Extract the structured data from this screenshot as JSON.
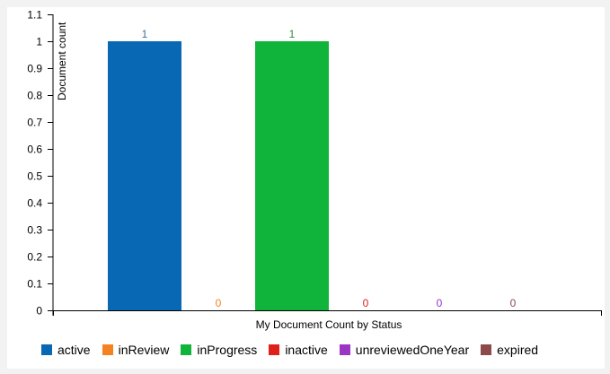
{
  "chart_data": {
    "type": "bar",
    "title": "",
    "xlabel": "My Document Count by Status",
    "ylabel": "Document count",
    "ylim": [
      0,
      1.1
    ],
    "yticks": [
      "0",
      "0.1",
      "0.2",
      "0.3",
      "0.4",
      "0.5",
      "0.6",
      "0.7",
      "0.8",
      "0.9",
      "1",
      "1.1"
    ],
    "categories": [
      "active",
      "inReview",
      "inProgress",
      "inactive",
      "unreviewedOneYear",
      "expired"
    ],
    "values": [
      1,
      0,
      1,
      0,
      0,
      0
    ],
    "data_labels": [
      "1",
      "0",
      "1",
      "0",
      "0",
      "0"
    ],
    "colors": [
      "#0868b4",
      "#f58220",
      "#10b43a",
      "#e0201b",
      "#9b35c4",
      "#8c4a4a"
    ],
    "label_colors": [
      "#3a6fa0",
      "#f58220",
      "#2e8b3c",
      "#e0201b",
      "#9b35c4",
      "#8c4a4a"
    ],
    "legend": [
      "active",
      "inReview",
      "inProgress",
      "inactive",
      "unreviewedOneYear",
      "expired"
    ],
    "legend_position": "bottom-left",
    "grid": false
  }
}
